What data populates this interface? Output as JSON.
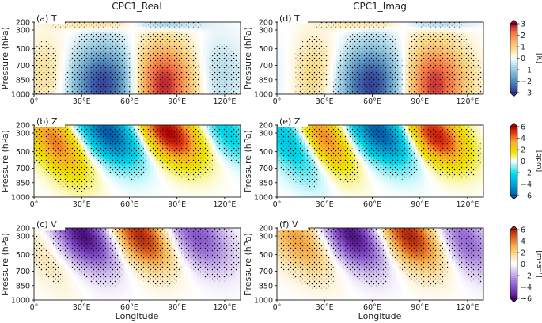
{
  "chart_data": {
    "type": "heatmap",
    "columns": [
      "CPC1_Real",
      "CPC1_Imag"
    ],
    "xlabel": "Longitude",
    "ylabel": "Pressure (hPa)",
    "x_range": [
      0,
      130
    ],
    "x_ticks": [
      0,
      30,
      60,
      90,
      120
    ],
    "x_tick_labels": [
      "0°",
      "30°E",
      "60°E",
      "90°E",
      "120°E"
    ],
    "y_ticks": [
      200,
      300,
      500,
      700,
      850,
      1000
    ],
    "y_tick_labels": [
      "200",
      "300",
      "500",
      "700",
      "850",
      "1000"
    ],
    "y_range": [
      1000,
      200
    ],
    "rows": [
      {
        "variable": "T",
        "colormap": "RdYlBu_r",
        "colorbar_ticks": [
          "3",
          "2",
          "1",
          "0",
          "−1",
          "−2",
          "−3"
        ],
        "colorbar_range": [
          -3,
          3
        ],
        "unit": "[K]",
        "panels": [
          {
            "label": "(a) T",
            "blobs": [
              {
                "lon": 45,
                "p": 900,
                "amp": -3.0,
                "sx": 16,
                "sy": 300
              },
              {
                "lon": 80,
                "p": 900,
                "amp": 3.0,
                "sx": 15,
                "sy": 320
              },
              {
                "lon": 10,
                "p": 800,
                "amp": 0.8,
                "sx": 12,
                "sy": 300
              },
              {
                "lon": 115,
                "p": 800,
                "amp": -0.7,
                "sx": 12,
                "sy": 300
              },
              {
                "lon": 45,
                "p": 230,
                "amp": 0.9,
                "sx": 20,
                "sy": 45
              },
              {
                "lon": 80,
                "p": 230,
                "amp": -1.2,
                "sx": 16,
                "sy": 45
              }
            ]
          },
          {
            "label": "(d) T",
            "blobs": [
              {
                "lon": 60,
                "p": 900,
                "amp": -3.0,
                "sx": 16,
                "sy": 300
              },
              {
                "lon": 98,
                "p": 900,
                "amp": 2.8,
                "sx": 15,
                "sy": 320
              },
              {
                "lon": 25,
                "p": 800,
                "amp": 1.0,
                "sx": 14,
                "sy": 300
              },
              {
                "lon": 5,
                "p": 800,
                "amp": -0.4,
                "sx": 8,
                "sy": 300
              },
              {
                "lon": 60,
                "p": 230,
                "amp": 0.8,
                "sx": 20,
                "sy": 45
              },
              {
                "lon": 98,
                "p": 230,
                "amp": -1.0,
                "sx": 16,
                "sy": 45
              }
            ]
          }
        ]
      },
      {
        "variable": "Z",
        "colormap": "gph",
        "colorbar_ticks": [
          "6",
          "4",
          "2",
          "0",
          "−2",
          "−4",
          "−6"
        ],
        "colorbar_range": [
          -6,
          6
        ],
        "unit": "[gpm]",
        "panels": [
          {
            "label": "(b) Z",
            "tilt": 22,
            "blobs": [
              {
                "lon": 14,
                "p": 400,
                "amp": 4.0,
                "sx": 11,
                "sy": 280
              },
              {
                "lon": 47,
                "p": 300,
                "amp": -6.0,
                "sx": 12,
                "sy": 240
              },
              {
                "lon": 85,
                "p": 300,
                "amp": 6.0,
                "sx": 12,
                "sy": 240
              },
              {
                "lon": 122,
                "p": 300,
                "amp": -2.5,
                "sx": 9,
                "sy": 220
              }
            ]
          },
          {
            "label": "(e) Z",
            "tilt": 22,
            "blobs": [
              {
                "lon": 8,
                "p": 400,
                "amp": -3.0,
                "sx": 10,
                "sy": 280
              },
              {
                "lon": 30,
                "p": 350,
                "amp": 4.0,
                "sx": 10,
                "sy": 260
              },
              {
                "lon": 65,
                "p": 300,
                "amp": -6.0,
                "sx": 12,
                "sy": 240
              },
              {
                "lon": 100,
                "p": 330,
                "amp": 5.5,
                "sx": 12,
                "sy": 230
              }
            ]
          }
        ]
      },
      {
        "variable": "V",
        "colormap": "PuOr_r",
        "colorbar_ticks": [
          "6",
          "4",
          "2",
          "0",
          "−2",
          "−4",
          "−6"
        ],
        "colorbar_range": [
          -6,
          6
        ],
        "unit": "[m•s⁻¹]",
        "panels": [
          {
            "label": "(c) V",
            "tilt": 20,
            "blobs": [
              {
                "lon": 8,
                "p": 500,
                "amp": 1.2,
                "sx": 10,
                "sy": 300
              },
              {
                "lon": 32,
                "p": 300,
                "amp": -6.0,
                "sx": 13,
                "sy": 260
              },
              {
                "lon": 67,
                "p": 300,
                "amp": 6.0,
                "sx": 13,
                "sy": 260
              },
              {
                "lon": 102,
                "p": 300,
                "amp": -4.0,
                "sx": 13,
                "sy": 260
              }
            ]
          },
          {
            "label": "(f) V",
            "tilt": 20,
            "blobs": [
              {
                "lon": 15,
                "p": 350,
                "amp": 3.5,
                "sx": 13,
                "sy": 280
              },
              {
                "lon": 48,
                "p": 300,
                "amp": -6.0,
                "sx": 13,
                "sy": 260
              },
              {
                "lon": 83,
                "p": 300,
                "amp": 6.0,
                "sx": 13,
                "sy": 260
              },
              {
                "lon": 118,
                "p": 350,
                "amp": -3.5,
                "sx": 11,
                "sy": 260
              }
            ]
          }
        ]
      }
    ]
  }
}
